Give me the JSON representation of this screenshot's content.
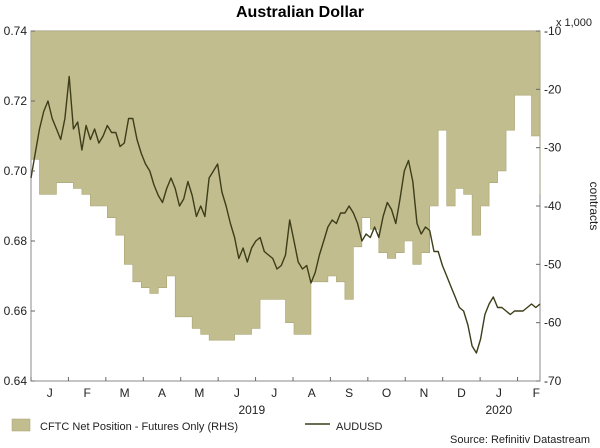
{
  "chart_data": {
    "type": "area",
    "title": "Australian Dollar",
    "source": "Source: Refinitiv Datastream",
    "x_months": [
      "J",
      "F",
      "M",
      "A",
      "M",
      "J",
      "J",
      "A",
      "S",
      "O",
      "N",
      "D",
      "J",
      "F"
    ],
    "x_years": [
      "2019",
      "2020"
    ],
    "left_axis": {
      "ylim": [
        0.64,
        0.74
      ],
      "ticks": [
        "0.64",
        "0.66",
        "0.68",
        "0.70",
        "0.72",
        "0.74"
      ]
    },
    "right_axis": {
      "ylim": [
        -70,
        -10
      ],
      "ticks": [
        "-70",
        "-60",
        "-50",
        "-40",
        "-30",
        "-20",
        "-10"
      ],
      "label": "contracts",
      "multiplier": "x 1,000"
    },
    "x_range": [
      0,
      60
    ],
    "series": [
      {
        "name": "CFTC Net Position - Futures Only (RHS)",
        "axis": "right",
        "color": "#c2bd8e",
        "step": true,
        "x": [
          0,
          1,
          2,
          3,
          4,
          5,
          6,
          7,
          8,
          9,
          10,
          11,
          12,
          13,
          14,
          15,
          16,
          17,
          18,
          19,
          20,
          21,
          22,
          23,
          24,
          25,
          26,
          27,
          28,
          29,
          30,
          31,
          32,
          33,
          34,
          35,
          36,
          37,
          38,
          39,
          40,
          41,
          42,
          43,
          44,
          45,
          46,
          47,
          48,
          49,
          50,
          51,
          52,
          53,
          54,
          55,
          56,
          57,
          58,
          59,
          60
        ],
        "values": [
          -32,
          -38,
          -38,
          -36,
          -36,
          -37,
          -38,
          -40,
          -40,
          -42,
          -45,
          -50,
          -53,
          -54,
          -55,
          -54,
          -52,
          -59,
          -59,
          -61,
          -62,
          -63,
          -63,
          -63,
          -62,
          -62,
          -61,
          -56,
          -56,
          -56,
          -60,
          -62,
          -62,
          -53,
          -53,
          -52,
          -53,
          -56,
          -47,
          -42,
          -44,
          -48,
          -49,
          -48,
          -46,
          -50,
          -48,
          -40,
          -27,
          -40,
          -37,
          -38,
          -45,
          -40,
          -36,
          -34,
          -27,
          -21,
          -21,
          -28,
          -38
        ]
      },
      {
        "name": "AUDUSD",
        "axis": "left",
        "color": "#3d3d1a",
        "x": [
          0,
          0.5,
          1,
          1.5,
          2,
          2.5,
          3,
          3.5,
          4,
          4.5,
          5,
          5.5,
          6,
          6.5,
          7,
          7.5,
          8,
          8.5,
          9,
          9.5,
          10,
          10.5,
          11,
          11.5,
          12,
          12.5,
          13,
          13.5,
          14,
          14.5,
          15,
          15.5,
          16,
          16.5,
          17,
          17.5,
          18,
          18.5,
          19,
          19.5,
          20,
          20.5,
          21,
          21.5,
          22,
          22.5,
          23,
          23.5,
          24,
          24.5,
          25,
          25.5,
          26,
          26.5,
          27,
          27.5,
          28,
          28.5,
          29,
          29.5,
          30,
          30.5,
          31,
          31.5,
          32,
          32.5,
          33,
          33.5,
          34,
          34.5,
          35,
          35.5,
          36,
          36.5,
          37,
          37.5,
          38,
          38.5,
          39,
          39.5,
          40,
          40.5,
          41,
          41.5,
          42,
          42.5,
          43,
          43.5,
          44,
          44.5,
          45,
          45.5,
          46,
          46.5,
          47,
          47.5,
          48,
          48.5,
          49,
          49.5,
          50,
          50.5,
          51,
          51.5,
          52,
          52.5,
          53,
          53.5,
          54,
          54.5,
          55,
          55.5,
          56,
          56.5,
          57,
          57.5,
          58,
          58.5,
          59,
          59.5,
          60
        ],
        "values": [
          0.698,
          0.705,
          0.712,
          0.717,
          0.72,
          0.715,
          0.712,
          0.709,
          0.715,
          0.727,
          0.712,
          0.714,
          0.706,
          0.713,
          0.709,
          0.712,
          0.708,
          0.71,
          0.713,
          0.711,
          0.711,
          0.707,
          0.708,
          0.715,
          0.715,
          0.709,
          0.705,
          0.702,
          0.7,
          0.696,
          0.693,
          0.691,
          0.695,
          0.698,
          0.695,
          0.69,
          0.692,
          0.697,
          0.693,
          0.687,
          0.69,
          0.687,
          0.698,
          0.7,
          0.702,
          0.694,
          0.69,
          0.685,
          0.681,
          0.675,
          0.678,
          0.674,
          0.678,
          0.68,
          0.681,
          0.677,
          0.676,
          0.675,
          0.672,
          0.673,
          0.676,
          0.686,
          0.68,
          0.674,
          0.672,
          0.673,
          0.668,
          0.671,
          0.676,
          0.68,
          0.684,
          0.686,
          0.685,
          0.688,
          0.688,
          0.69,
          0.688,
          0.685,
          0.68,
          0.682,
          0.681,
          0.684,
          0.681,
          0.687,
          0.691,
          0.689,
          0.685,
          0.692,
          0.7,
          0.703,
          0.697,
          0.685,
          0.682,
          0.684,
          0.683,
          0.677,
          0.677,
          0.673,
          0.67,
          0.667,
          0.664,
          0.661,
          0.66,
          0.656,
          0.65,
          0.648,
          0.652,
          0.659,
          0.662,
          0.664,
          0.661,
          0.661,
          0.66,
          0.659,
          0.66,
          0.66,
          0.66,
          0.661,
          0.662,
          0.661,
          0.662
        ]
      }
    ]
  }
}
